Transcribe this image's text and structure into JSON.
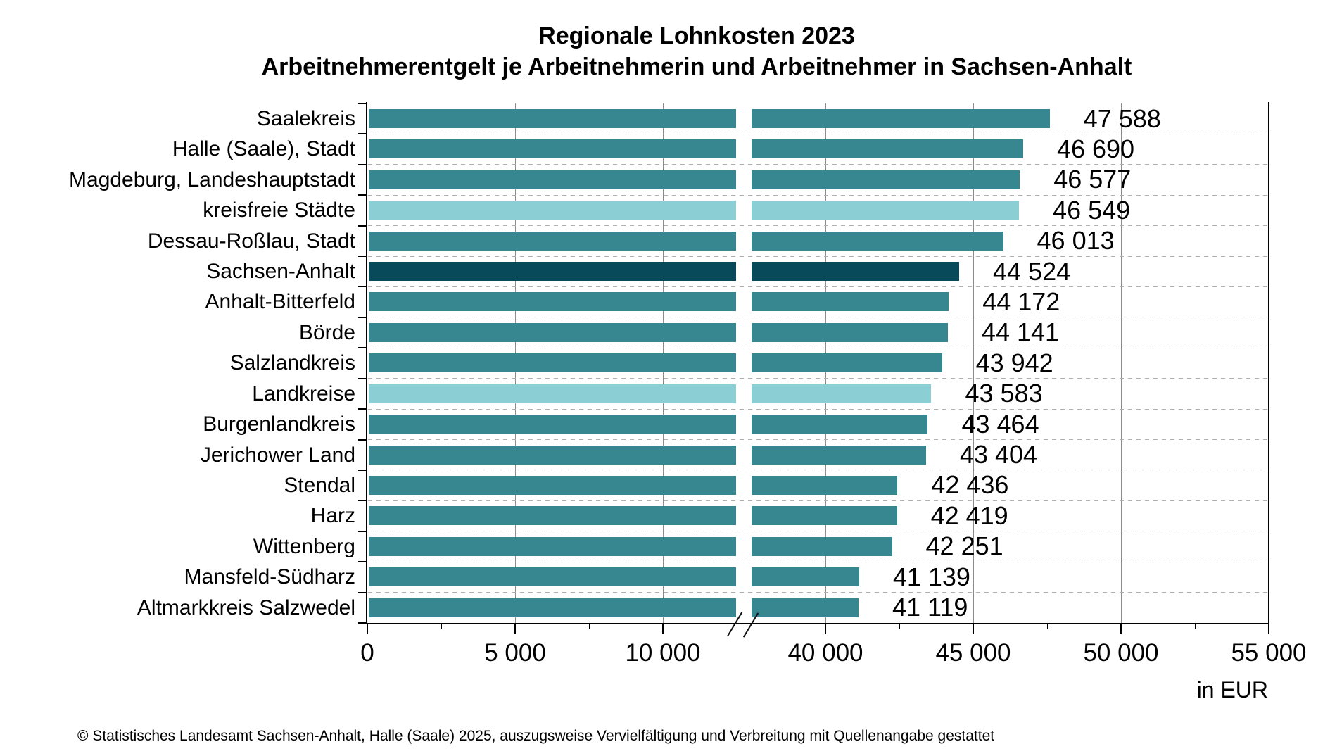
{
  "title": {
    "line1": "Regionale Lohnkosten 2023",
    "line2": "Arbeitnehmerentgelt je Arbeitnehmerin und Arbeitnehmer in Sachsen-Anhalt"
  },
  "footer": "© Statistisches Landesamt Sachsen-Anhalt, Halle (Saale) 2025, auszugsweise Vervielfältigung und Verbreitung mit Quellenangabe gestattet",
  "chart_data": {
    "type": "bar",
    "orientation": "horizontal",
    "title": "Regionale Lohnkosten 2023",
    "subtitle": "Arbeitnehmerentgelt je Arbeitnehmerin und Arbeitnehmer in Sachsen-Anhalt",
    "unit": "EUR",
    "categories": [
      "Saalekreis",
      "Halle (Saale), Stadt",
      "Magdeburg, Landeshauptstadt",
      "kreisfreie Städte",
      "Dessau-Roßlau, Stadt",
      "Sachsen-Anhalt",
      "Anhalt-Bitterfeld",
      "Börde",
      "Salzlandkreis",
      "Landkreise",
      "Burgenlandkreis",
      "Jerichower Land",
      "Stendal",
      "Harz",
      "Wittenberg",
      "Mansfeld-Südharz",
      "Altmarkkreis Salzwedel"
    ],
    "values": [
      47588,
      46690,
      46577,
      46549,
      46013,
      44524,
      44172,
      44141,
      43942,
      43583,
      43464,
      43404,
      42436,
      42419,
      42251,
      41139,
      41119
    ],
    "rows": [
      {
        "name": "Saalekreis",
        "value": 47588,
        "label": "47 588",
        "role": "district"
      },
      {
        "name": "Halle (Saale), Stadt",
        "value": 46690,
        "label": "46 690",
        "role": "district"
      },
      {
        "name": "Magdeburg, Landeshauptstadt",
        "value": 46577,
        "label": "46 577",
        "role": "district"
      },
      {
        "name": "kreisfreie Städte",
        "value": 46549,
        "label": "46 549",
        "role": "aggregate"
      },
      {
        "name": "Dessau-Roßlau, Stadt",
        "value": 46013,
        "label": "46 013",
        "role": "district"
      },
      {
        "name": "Sachsen-Anhalt",
        "value": 44524,
        "label": "44 524",
        "role": "state"
      },
      {
        "name": "Anhalt-Bitterfeld",
        "value": 44172,
        "label": "44 172",
        "role": "district"
      },
      {
        "name": "Börde",
        "value": 44141,
        "label": "44 141",
        "role": "district"
      },
      {
        "name": "Salzlandkreis",
        "value": 43942,
        "label": "43 942",
        "role": "district"
      },
      {
        "name": "Landkreise",
        "value": 43583,
        "label": "43 583",
        "role": "aggregate"
      },
      {
        "name": "Burgenlandkreis",
        "value": 43464,
        "label": "43 464",
        "role": "district"
      },
      {
        "name": "Jerichower Land",
        "value": 43404,
        "label": "43 404",
        "role": "district"
      },
      {
        "name": "Stendal",
        "value": 42436,
        "label": "42 436",
        "role": "district"
      },
      {
        "name": "Harz",
        "value": 42419,
        "label": "42 419",
        "role": "district"
      },
      {
        "name": "Wittenberg",
        "value": 42251,
        "label": "42 251",
        "role": "district"
      },
      {
        "name": "Mansfeld-Südharz",
        "value": 41139,
        "label": "41 139",
        "role": "district"
      },
      {
        "name": "Altmarkkreis Salzwedel",
        "value": 41119,
        "label": "41 119",
        "role": "district"
      }
    ],
    "colors": {
      "district": "#36878F",
      "aggregate": "#8BCED3",
      "state": "#08495A"
    },
    "x_axis": {
      "unit_label": "in EUR",
      "break": {
        "left_max": 12500,
        "right_min": 37500
      },
      "major_ticks": [
        {
          "value": 0,
          "label": "0"
        },
        {
          "value": 5000,
          "label": "5 000"
        },
        {
          "value": 10000,
          "label": "10 000"
        },
        {
          "value": 40000,
          "label": "40 000"
        },
        {
          "value": 45000,
          "label": "45 000"
        },
        {
          "value": 50000,
          "label": "50 000"
        },
        {
          "value": 55000,
          "label": "55 000"
        }
      ],
      "minor_ticks": [
        2500,
        7500,
        42500,
        47500,
        52500
      ],
      "gridlines_at": [
        5000,
        10000,
        40000,
        45000,
        50000
      ],
      "xlim_left_segment": [
        0,
        12500
      ],
      "xlim_right_segment": [
        37500,
        55000
      ],
      "grid": true
    },
    "legend": null
  }
}
